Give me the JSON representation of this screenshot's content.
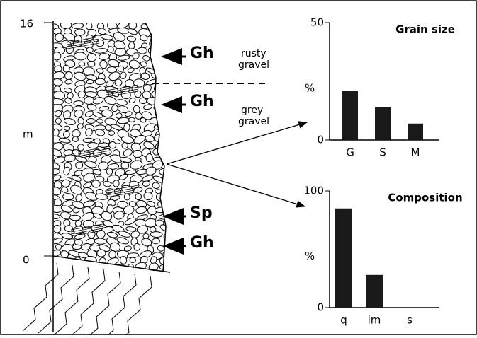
{
  "section": {
    "top_tick": "16",
    "unit": "m",
    "bottom_tick": "0",
    "facies": [
      {
        "code": "Gh",
        "description": [
          "rusty",
          "gravel"
        ]
      },
      {
        "code": "Gh",
        "description": [
          "grey",
          "gravel"
        ]
      },
      {
        "code": "Sp"
      },
      {
        "code": "Gh"
      }
    ]
  },
  "chart_data": [
    {
      "type": "bar",
      "title": "Grain size",
      "ylabel": "%",
      "categories": [
        "G",
        "S",
        "M"
      ],
      "values": [
        21,
        14,
        7
      ],
      "color": "#1a1a1a",
      "ylim": [
        0,
        50
      ],
      "yticks": [
        0,
        50
      ]
    },
    {
      "type": "bar",
      "title": "Composition",
      "ylabel": "%",
      "categories": [
        "q",
        "im",
        "s"
      ],
      "values": [
        85,
        28,
        0
      ],
      "color": "#1a1a1a",
      "ylim": [
        0,
        100
      ],
      "yticks": [
        0,
        100
      ]
    }
  ]
}
